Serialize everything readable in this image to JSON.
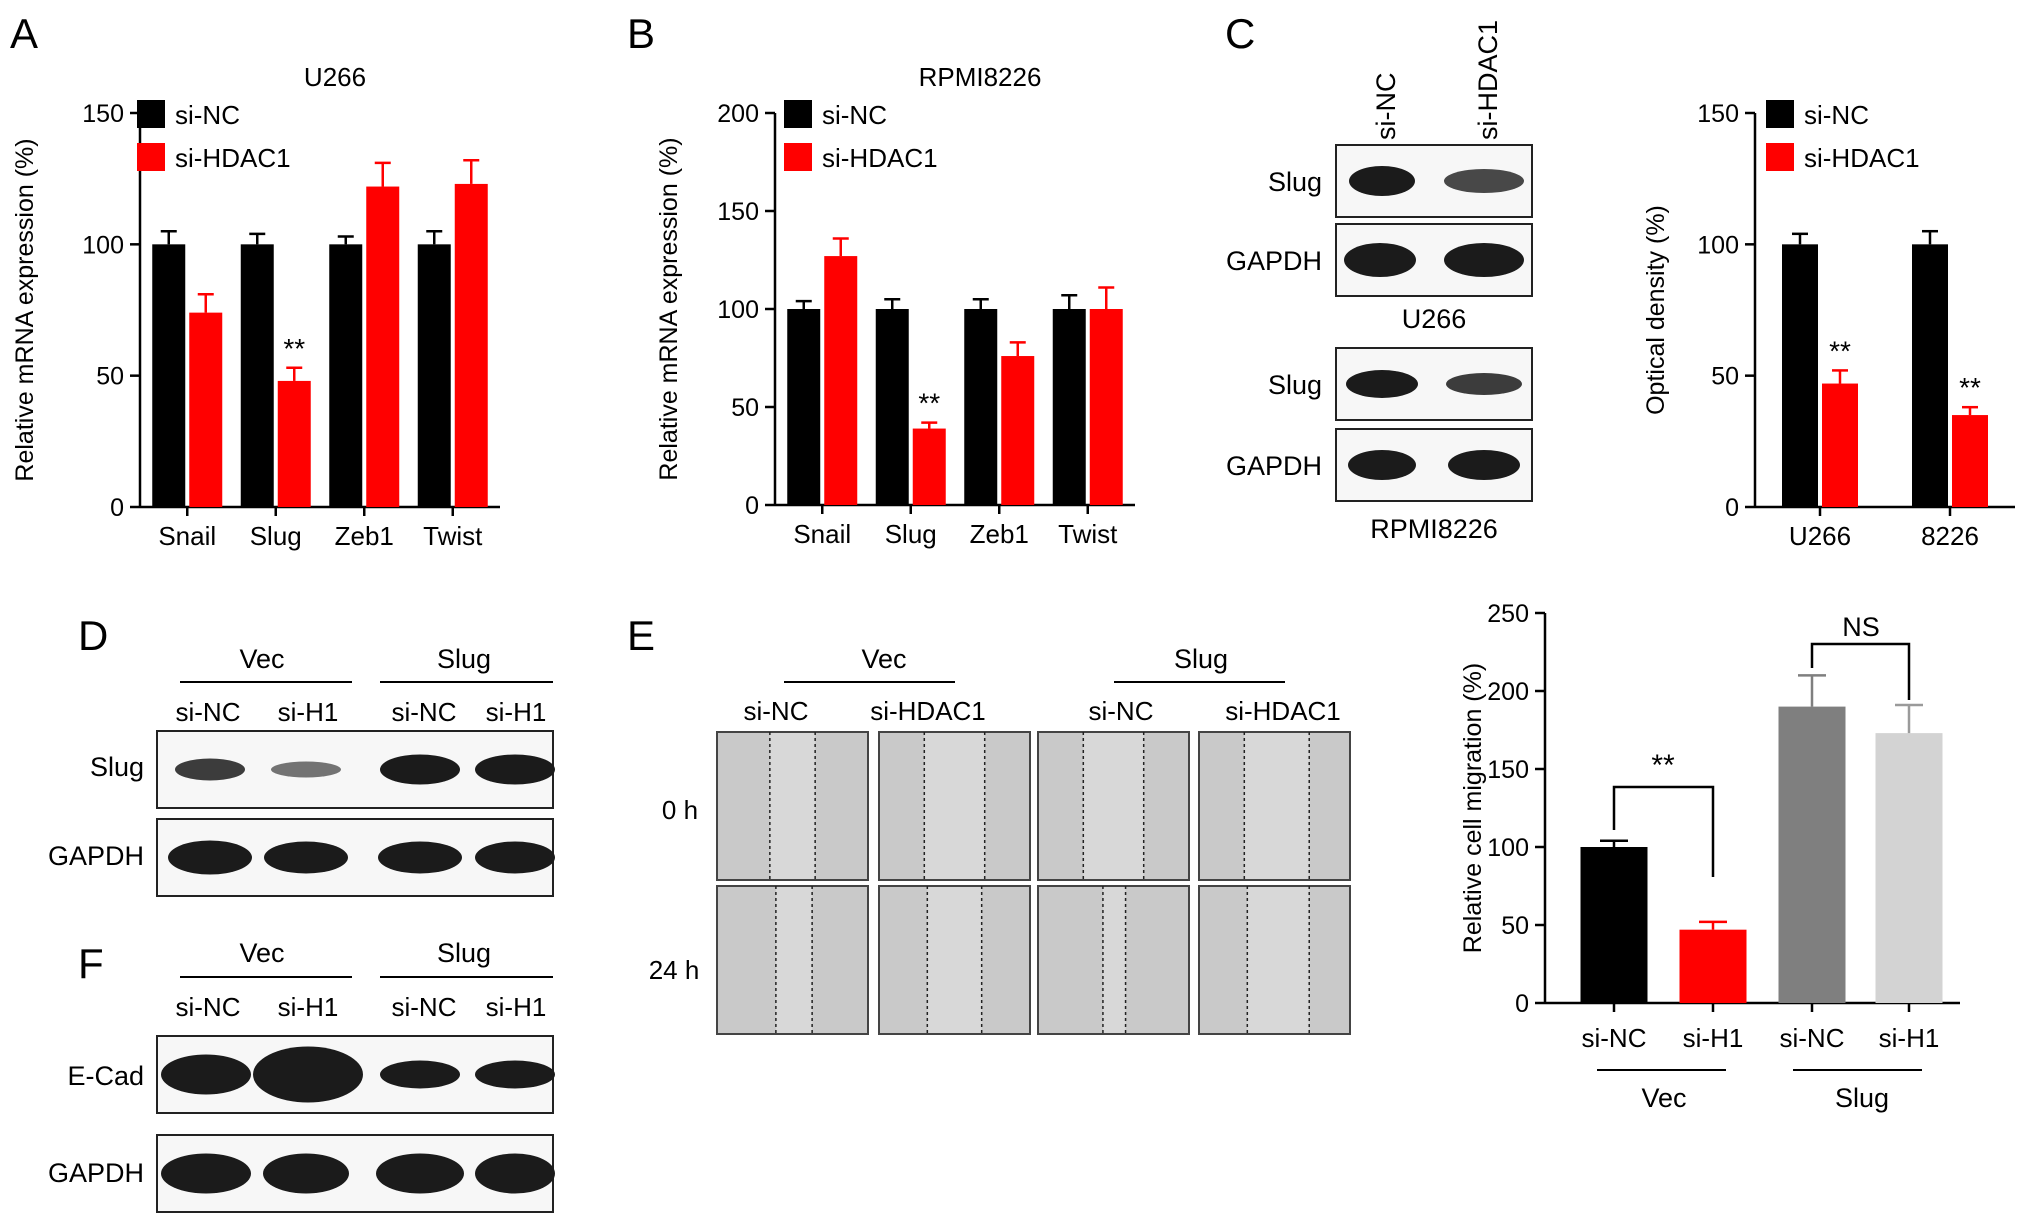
{
  "panels": {
    "A": {
      "letter": "A",
      "title": "U266",
      "ylabel": "Relative mRNA expression (%)"
    },
    "B": {
      "letter": "B",
      "title": "RPMI8226",
      "ylabel": "Relative mRNA expression (%)"
    },
    "C": {
      "letter": "C",
      "lane_labels": [
        "si-NC",
        "si-HDAC1"
      ],
      "blot_labels": [
        "Slug",
        "GAPDH",
        "Slug",
        "GAPDH"
      ],
      "cell_labels": [
        "U266",
        "RPMI8226"
      ],
      "ylabel": "Optical density (%)"
    },
    "D": {
      "letter": "D",
      "groups": [
        "Vec",
        "Slug"
      ],
      "lanes": [
        "si-NC",
        "si-H1",
        "si-NC",
        "si-H1"
      ],
      "blot_labels": [
        "Slug",
        "GAPDH"
      ]
    },
    "E": {
      "letter": "E",
      "groups": [
        "Vec",
        "Slug"
      ],
      "lanes": [
        "si-NC",
        "si-HDAC1",
        "si-NC",
        "si-HDAC1"
      ],
      "row_labels": [
        "0 h",
        "24 h"
      ],
      "ylabel": "Relative cell migration (%)",
      "x_tick_labels": [
        "si-NC",
        "si-H1",
        "si-NC",
        "si-H1"
      ],
      "x_group_labels": [
        "Vec",
        "Slug"
      ],
      "sig_labels": [
        "**",
        "NS"
      ]
    },
    "F": {
      "letter": "F",
      "groups": [
        "Vec",
        "Slug"
      ],
      "lanes": [
        "si-NC",
        "si-H1",
        "si-NC",
        "si-H1"
      ],
      "blot_labels": [
        "E-Cad",
        "GAPDH"
      ]
    }
  },
  "legend": {
    "items": [
      "si-NC",
      "si-HDAC1"
    ],
    "colors": [
      "#000000",
      "#ff0000"
    ]
  },
  "chart_data": [
    {
      "id": "A",
      "type": "bar",
      "title": "U266",
      "xlabel": "",
      "ylabel": "Relative mRNA expression (%)",
      "categories": [
        "Snail",
        "Slug",
        "Zeb1",
        "Twist"
      ],
      "ylim": [
        0,
        150
      ],
      "yticks": [
        0,
        50,
        100,
        150
      ],
      "series": [
        {
          "name": "si-NC",
          "color": "#000000",
          "values": [
            100,
            100,
            100,
            100
          ],
          "errors": [
            5,
            4,
            3,
            5
          ]
        },
        {
          "name": "si-HDAC1",
          "color": "#ff0000",
          "values": [
            74,
            48,
            122,
            123
          ],
          "errors": [
            7,
            5,
            9,
            9
          ]
        }
      ],
      "annotations": [
        {
          "category": "Slug",
          "series": "si-HDAC1",
          "text": "**"
        }
      ],
      "legend": "top-left"
    },
    {
      "id": "B",
      "type": "bar",
      "title": "RPMI8226",
      "xlabel": "",
      "ylabel": "Relative mRNA expression (%)",
      "categories": [
        "Snail",
        "Slug",
        "Zeb1",
        "Twist"
      ],
      "ylim": [
        0,
        200
      ],
      "yticks": [
        0,
        50,
        100,
        150,
        200
      ],
      "series": [
        {
          "name": "si-NC",
          "color": "#000000",
          "values": [
            100,
            100,
            100,
            100
          ],
          "errors": [
            4,
            5,
            5,
            7
          ]
        },
        {
          "name": "si-HDAC1",
          "color": "#ff0000",
          "values": [
            127,
            39,
            76,
            100
          ],
          "errors": [
            9,
            3,
            7,
            11
          ]
        }
      ],
      "annotations": [
        {
          "category": "Slug",
          "series": "si-HDAC1",
          "text": "**"
        }
      ],
      "legend": "top-left"
    },
    {
      "id": "C",
      "type": "bar",
      "title": "",
      "xlabel": "",
      "ylabel": "Optical density (%)",
      "categories": [
        "U266",
        "8226"
      ],
      "ylim": [
        0,
        150
      ],
      "yticks": [
        0,
        50,
        100,
        150
      ],
      "series": [
        {
          "name": "si-NC",
          "color": "#000000",
          "values": [
            100,
            100
          ],
          "errors": [
            4,
            5
          ]
        },
        {
          "name": "si-HDAC1",
          "color": "#ff0000",
          "values": [
            47,
            35
          ],
          "errors": [
            5,
            3
          ]
        }
      ],
      "annotations": [
        {
          "category": "U266",
          "series": "si-HDAC1",
          "text": "**"
        },
        {
          "category": "8226",
          "series": "si-HDAC1",
          "text": "**"
        }
      ],
      "legend": "top-left"
    },
    {
      "id": "E",
      "type": "bar",
      "title": "",
      "xlabel": "",
      "ylabel": "Relative cell migration (%)",
      "categories": [
        "si-NC",
        "si-H1",
        "si-NC",
        "si-H1"
      ],
      "groups": [
        "Vec",
        "Vec",
        "Slug",
        "Slug"
      ],
      "ylim": [
        0,
        250
      ],
      "yticks": [
        0,
        50,
        100,
        150,
        200,
        250
      ],
      "values": [
        100,
        47,
        190,
        173
      ],
      "errors": [
        4,
        5,
        20,
        18
      ],
      "colors": [
        "#000000",
        "#ff0000",
        "#7f7f7f",
        "#d3d3d3"
      ]
    }
  ]
}
